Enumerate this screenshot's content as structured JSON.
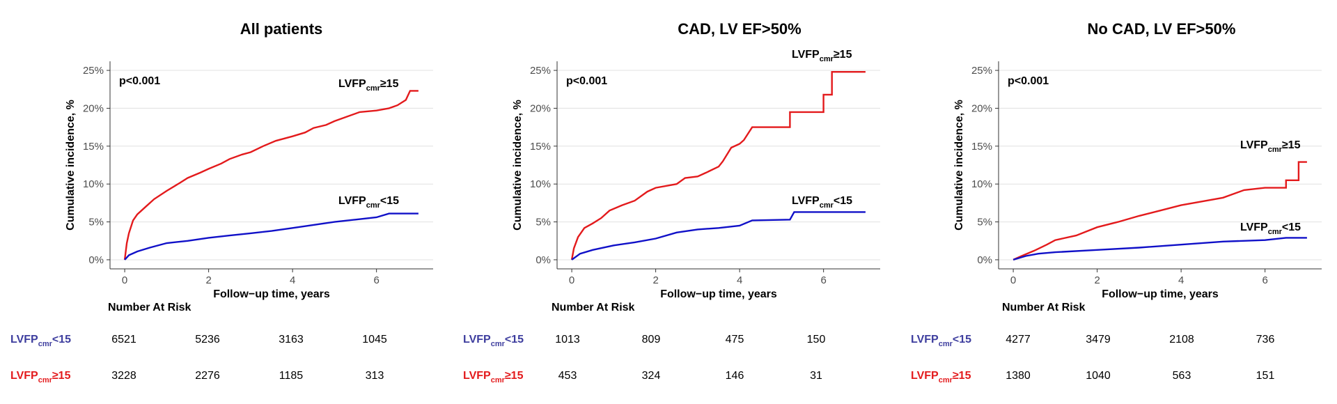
{
  "risk_table_title": "Number At Risk",
  "row_labels": {
    "low": {
      "base": "LVFP",
      "sub": "cmr",
      "sfx": "<15"
    },
    "high": {
      "base": "LVFP",
      "sub": "cmr",
      "sfx": "≥15"
    }
  },
  "colors": {
    "high": "#e31a1c",
    "low": "#1010c8",
    "row_low": "#3d3d9e",
    "row_high": "#e31a1c",
    "grid": "#e0e0e0"
  },
  "chart_data": [
    {
      "type": "line",
      "title": "All patients",
      "xlabel": "Follow−up time, years",
      "ylabel": "Cumulative incidence, %",
      "xlim": [
        -0.35,
        7.35
      ],
      "ylim": [
        -1.2,
        26.2
      ],
      "xticks": [
        0,
        2,
        4,
        6
      ],
      "xtick_labels": [
        "0",
        "2",
        "4",
        "6"
      ],
      "yticks": [
        0,
        5,
        10,
        15,
        20,
        25
      ],
      "ytick_labels": [
        "0%",
        "5%",
        "10%",
        "15%",
        "20%",
        "25%"
      ],
      "p_value": "p<0.001",
      "series": [
        {
          "name": "LVFPcmr≥15",
          "label": {
            "base": "LVFP",
            "sub": "cmr",
            "sfx": "≥15"
          },
          "points": [
            [
              0,
              0
            ],
            [
              0.05,
              2.2
            ],
            [
              0.1,
              3.5
            ],
            [
              0.2,
              5.2
            ],
            [
              0.3,
              6.0
            ],
            [
              0.5,
              7.0
            ],
            [
              0.7,
              8.0
            ],
            [
              1.0,
              9.1
            ],
            [
              1.3,
              10.1
            ],
            [
              1.5,
              10.8
            ],
            [
              1.8,
              11.5
            ],
            [
              2.0,
              12.0
            ],
            [
              2.3,
              12.7
            ],
            [
              2.5,
              13.3
            ],
            [
              2.8,
              13.9
            ],
            [
              3.0,
              14.2
            ],
            [
              3.3,
              15.0
            ],
            [
              3.6,
              15.7
            ],
            [
              4.0,
              16.3
            ],
            [
              4.3,
              16.8
            ],
            [
              4.5,
              17.4
            ],
            [
              4.8,
              17.8
            ],
            [
              5.0,
              18.3
            ],
            [
              5.3,
              18.9
            ],
            [
              5.6,
              19.5
            ],
            [
              6.0,
              19.7
            ],
            [
              6.3,
              20.0
            ],
            [
              6.5,
              20.4
            ],
            [
              6.7,
              21.1
            ],
            [
              6.8,
              22.3
            ],
            [
              7.0,
              22.3
            ]
          ]
        },
        {
          "name": "LVFPcmr<15",
          "label": {
            "base": "LVFP",
            "sub": "cmr",
            "sfx": "<15"
          },
          "points": [
            [
              0,
              0
            ],
            [
              0.1,
              0.6
            ],
            [
              0.3,
              1.1
            ],
            [
              0.6,
              1.6
            ],
            [
              1.0,
              2.2
            ],
            [
              1.5,
              2.5
            ],
            [
              2.0,
              2.9
            ],
            [
              2.5,
              3.2
            ],
            [
              3.0,
              3.5
            ],
            [
              3.5,
              3.8
            ],
            [
              4.0,
              4.2
            ],
            [
              4.5,
              4.6
            ],
            [
              5.0,
              5.0
            ],
            [
              5.5,
              5.3
            ],
            [
              6.0,
              5.6
            ],
            [
              6.3,
              6.1
            ],
            [
              7.0,
              6.1
            ]
          ]
        }
      ],
      "risk": {
        "low": [
          "6521",
          "5236",
          "3163",
          "1045"
        ],
        "high": [
          "3228",
          "2276",
          "1185",
          "313"
        ]
      }
    },
    {
      "type": "line",
      "title": "CAD, LV EF>50%",
      "xlabel": "Follow−up time, years",
      "ylabel": "Cumulative incidence, %",
      "xlim": [
        -0.35,
        7.35
      ],
      "ylim": [
        -1.2,
        26.2
      ],
      "xticks": [
        0,
        2,
        4,
        6
      ],
      "xtick_labels": [
        "0",
        "2",
        "4",
        "6"
      ],
      "yticks": [
        0,
        5,
        10,
        15,
        20,
        25
      ],
      "ytick_labels": [
        "0%",
        "5%",
        "10%",
        "15%",
        "20%",
        "25%"
      ],
      "p_value": "p<0.001",
      "series": [
        {
          "name": "LVFPcmr≥15",
          "label": {
            "base": "LVFP",
            "sub": "cmr",
            "sfx": "≥15"
          },
          "points": [
            [
              0,
              0
            ],
            [
              0.05,
              1.5
            ],
            [
              0.15,
              3.0
            ],
            [
              0.3,
              4.2
            ],
            [
              0.5,
              4.8
            ],
            [
              0.7,
              5.5
            ],
            [
              0.9,
              6.5
            ],
            [
              1.2,
              7.2
            ],
            [
              1.5,
              7.8
            ],
            [
              1.8,
              9.0
            ],
            [
              2.0,
              9.5
            ],
            [
              2.5,
              10.0
            ],
            [
              2.7,
              10.8
            ],
            [
              3.0,
              11.0
            ],
            [
              3.2,
              11.5
            ],
            [
              3.5,
              12.3
            ],
            [
              3.6,
              13.0
            ],
            [
              3.8,
              14.8
            ],
            [
              4.0,
              15.3
            ],
            [
              4.1,
              15.8
            ],
            [
              4.3,
              17.5
            ],
            [
              5.2,
              17.5
            ],
            [
              5.2,
              19.5
            ],
            [
              6.0,
              19.5
            ],
            [
              6.0,
              21.8
            ],
            [
              6.2,
              21.8
            ],
            [
              6.2,
              24.8
            ],
            [
              7.0,
              24.8
            ]
          ]
        },
        {
          "name": "LVFPcmr<15",
          "label": {
            "base": "LVFP",
            "sub": "cmr",
            "sfx": "<15"
          },
          "points": [
            [
              0,
              0
            ],
            [
              0.2,
              0.8
            ],
            [
              0.5,
              1.3
            ],
            [
              1.0,
              1.9
            ],
            [
              1.5,
              2.3
            ],
            [
              2.0,
              2.8
            ],
            [
              2.5,
              3.6
            ],
            [
              3.0,
              4.0
            ],
            [
              3.5,
              4.2
            ],
            [
              4.0,
              4.5
            ],
            [
              4.3,
              5.2
            ],
            [
              5.2,
              5.3
            ],
            [
              5.3,
              6.3
            ],
            [
              7.0,
              6.3
            ]
          ]
        }
      ],
      "risk": {
        "low": [
          "1013",
          "809",
          "475",
          "150"
        ],
        "high": [
          "453",
          "324",
          "146",
          "31"
        ]
      }
    },
    {
      "type": "line",
      "title": "No CAD, LV EF>50%",
      "xlabel": "Follow−up time, years",
      "ylabel": "Cumulative incidence, %",
      "xlim": [
        -0.35,
        7.35
      ],
      "ylim": [
        -1.2,
        26.2
      ],
      "xticks": [
        0,
        2,
        4,
        6
      ],
      "xtick_labels": [
        "0",
        "2",
        "4",
        "6"
      ],
      "yticks": [
        0,
        5,
        10,
        15,
        20,
        25
      ],
      "ytick_labels": [
        "0%",
        "5%",
        "10%",
        "15%",
        "20%",
        "25%"
      ],
      "p_value": "p<0.001",
      "series": [
        {
          "name": "LVFPcmr≥15",
          "label": {
            "base": "LVFP",
            "sub": "cmr",
            "sfx": "≥15"
          },
          "points": [
            [
              0,
              0
            ],
            [
              0.2,
              0.5
            ],
            [
              0.5,
              1.2
            ],
            [
              0.8,
              2.0
            ],
            [
              1.0,
              2.6
            ],
            [
              1.5,
              3.2
            ],
            [
              2.0,
              4.3
            ],
            [
              2.5,
              5.0
            ],
            [
              3.0,
              5.8
            ],
            [
              3.5,
              6.5
            ],
            [
              4.0,
              7.2
            ],
            [
              4.5,
              7.7
            ],
            [
              5.0,
              8.2
            ],
            [
              5.5,
              9.2
            ],
            [
              6.0,
              9.5
            ],
            [
              6.5,
              9.5
            ],
            [
              6.5,
              10.5
            ],
            [
              6.8,
              10.5
            ],
            [
              6.8,
              12.9
            ],
            [
              7.0,
              12.9
            ]
          ]
        },
        {
          "name": "LVFPcmr<15",
          "label": {
            "base": "LVFP",
            "sub": "cmr",
            "sfx": "<15"
          },
          "points": [
            [
              0,
              0
            ],
            [
              0.3,
              0.5
            ],
            [
              0.6,
              0.8
            ],
            [
              1.0,
              1.0
            ],
            [
              2.0,
              1.3
            ],
            [
              3.0,
              1.6
            ],
            [
              4.0,
              2.0
            ],
            [
              5.0,
              2.4
            ],
            [
              6.0,
              2.6
            ],
            [
              6.5,
              2.9
            ],
            [
              7.0,
              2.9
            ]
          ]
        }
      ],
      "risk": {
        "low": [
          "4277",
          "3479",
          "2108",
          "736"
        ],
        "high": [
          "1380",
          "1040",
          "563",
          "151"
        ]
      }
    }
  ]
}
